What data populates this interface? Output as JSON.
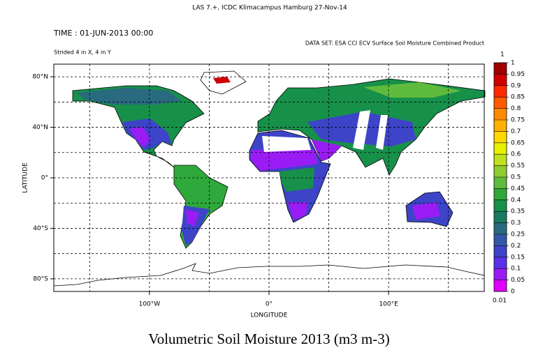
{
  "header": "LAS 7.+, ICDC Klimacampus Hamburg 27-Nov-14",
  "time": "TIME : 01-JUN-2013 00:00",
  "dataset": "DATA SET: ESA CCI ECV Surface Soil Moisture Combined Product",
  "stride": "Strided 4 in X, 4 in Y",
  "map": {
    "xlabel": "LONGITUDE",
    "ylabel": "LATITUDE",
    "xlim": [
      -180,
      180
    ],
    "ylim": [
      -90,
      90
    ],
    "xticks": [
      {
        "value": -100,
        "label": "100°W"
      },
      {
        "value": 0,
        "label": "0°"
      },
      {
        "value": 100,
        "label": "100°E"
      }
    ],
    "yticks": [
      {
        "value": 80,
        "label": "80°N"
      },
      {
        "value": 40,
        "label": "40°N"
      },
      {
        "value": 0,
        "label": "0°"
      },
      {
        "value": -40,
        "label": "40°S"
      },
      {
        "value": -80,
        "label": "80°S"
      }
    ],
    "xgrid": [
      -150,
      -100,
      -50,
      0,
      50,
      100,
      150
    ],
    "ygrid": [
      -80,
      -60,
      -40,
      -20,
      0,
      20,
      40,
      60,
      80
    ]
  },
  "colorbar": {
    "max": 1,
    "min": 0.01,
    "ticks": [
      1,
      0.95,
      0.9,
      0.85,
      0.8,
      0.75,
      0.7,
      0.65,
      0.6,
      0.55,
      0.5,
      0.45,
      0.4,
      0.35,
      0.3,
      0.25,
      0.2,
      0.15,
      0.1,
      0.05,
      0
    ],
    "colors": [
      "#a00000",
      "#d00000",
      "#ff2a00",
      "#ff5a00",
      "#ff8a00",
      "#ffb000",
      "#ffd800",
      "#e8f000",
      "#c0e020",
      "#90cc30",
      "#5fbb3c",
      "#2fa83c",
      "#17904a",
      "#1a7a62",
      "#2a6a80",
      "#3458a8",
      "#3d44c8",
      "#5a30e8",
      "#9a1cf4",
      "#e000ff"
    ]
  },
  "title": "Volumetric Soil Moisture 2013 (m3 m-3)"
}
